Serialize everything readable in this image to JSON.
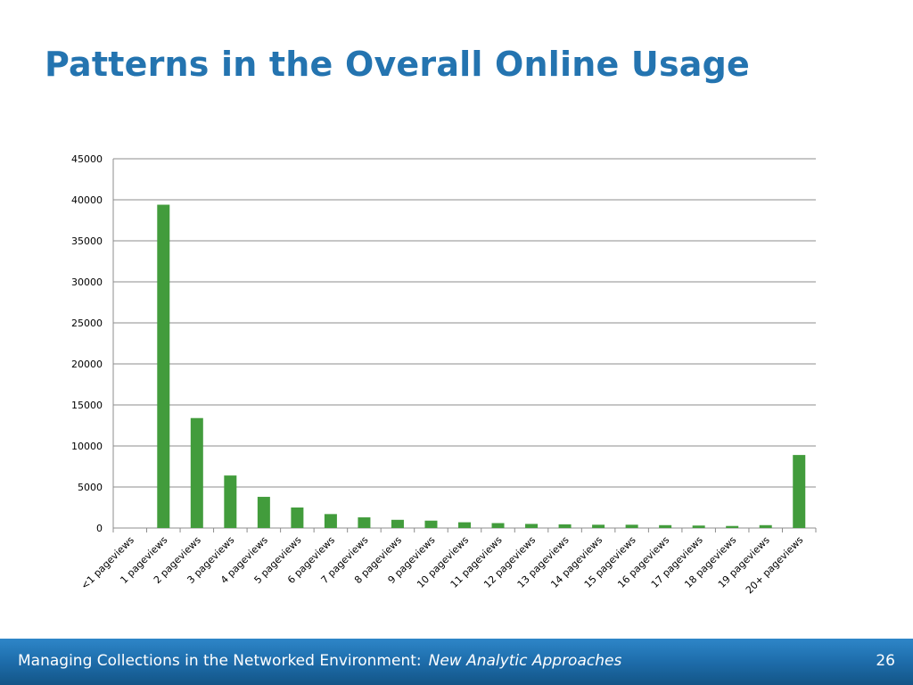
{
  "slide": {
    "title": "Patterns in the Overall Online Usage"
  },
  "footer": {
    "text_main": "Managing Collections in the Networked Environment:",
    "text_emphasis": "New Analytic Approaches",
    "page_number": "26"
  },
  "colors": {
    "title": "#2474b0",
    "bar": "#429c3c",
    "grid": "#8c8c8c",
    "footer_bg": "#1f6fae"
  },
  "chart_data": {
    "type": "bar",
    "title": "",
    "xlabel": "",
    "ylabel": "",
    "ylim": [
      0,
      45000
    ],
    "yticks": [
      0,
      5000,
      10000,
      15000,
      20000,
      25000,
      30000,
      35000,
      40000,
      45000
    ],
    "grid": true,
    "legend": "none",
    "categories": [
      "<1 pageviews",
      "1 pageviews",
      "2 pageviews",
      "3 pageviews",
      "4 pageviews",
      "5 pageviews",
      "6 pageviews",
      "7 pageviews",
      "8 pageviews",
      "9 pageviews",
      "10 pageviews",
      "11 pageviews",
      "12 pageviews",
      "13 pageviews",
      "14 pageviews",
      "15 pageviews",
      "16 pageviews",
      "17 pageviews",
      "18 pageviews",
      "19 pageviews",
      "20+ pageviews"
    ],
    "values": [
      0,
      39400,
      13400,
      6400,
      3800,
      2500,
      1700,
      1300,
      1000,
      900,
      700,
      600,
      500,
      450,
      400,
      400,
      350,
      300,
      250,
      350,
      8900
    ]
  }
}
